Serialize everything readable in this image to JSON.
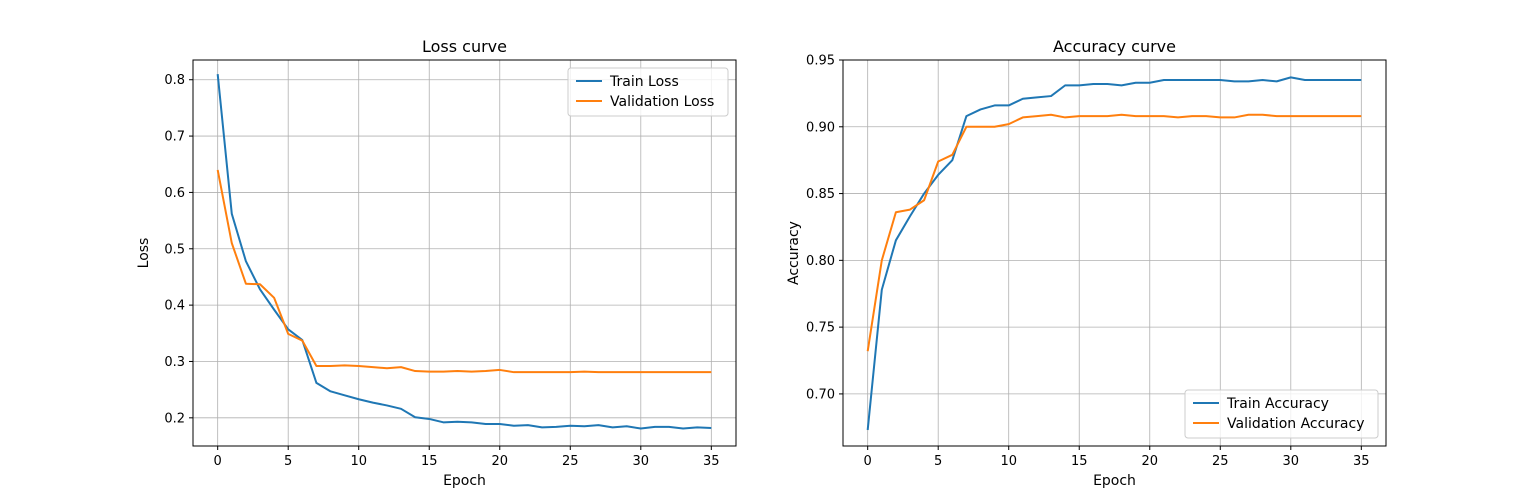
{
  "chart_data": [
    {
      "type": "line",
      "title": "Loss curve",
      "xlabel": "Epoch",
      "ylabel": "Loss",
      "xlim": [
        -1.75,
        36.75
      ],
      "ylim": [
        0.15,
        0.835
      ],
      "xticks": [
        0,
        5,
        10,
        15,
        20,
        25,
        30,
        35
      ],
      "xtick_labels": [
        "0",
        "5",
        "10",
        "15",
        "20",
        "25",
        "30",
        "35"
      ],
      "yticks": [
        0.2,
        0.3,
        0.4,
        0.5,
        0.6,
        0.7,
        0.8
      ],
      "ytick_labels": [
        "0.2",
        "0.3",
        "0.4",
        "0.5",
        "0.6",
        "0.7",
        "0.8"
      ],
      "grid": true,
      "legend_position": "upper right",
      "x": [
        0,
        1,
        2,
        3,
        4,
        5,
        6,
        7,
        8,
        9,
        10,
        11,
        12,
        13,
        14,
        15,
        16,
        17,
        18,
        19,
        20,
        21,
        22,
        23,
        24,
        25,
        26,
        27,
        28,
        29,
        30,
        31,
        32,
        33,
        34,
        35
      ],
      "series": [
        {
          "name": "Train Loss",
          "color": "#1f77b4",
          "values": [
            0.81,
            0.562,
            0.478,
            0.428,
            0.392,
            0.357,
            0.338,
            0.262,
            0.247,
            0.24,
            0.233,
            0.227,
            0.222,
            0.216,
            0.201,
            0.198,
            0.192,
            0.193,
            0.192,
            0.189,
            0.189,
            0.186,
            0.187,
            0.183,
            0.184,
            0.186,
            0.185,
            0.187,
            0.183,
            0.185,
            0.181,
            0.184,
            0.184,
            0.181,
            0.183,
            0.182
          ]
        },
        {
          "name": "Validation Loss",
          "color": "#ff7f0e",
          "values": [
            0.64,
            0.51,
            0.438,
            0.437,
            0.413,
            0.349,
            0.337,
            0.292,
            0.292,
            0.293,
            0.292,
            0.29,
            0.288,
            0.29,
            0.283,
            0.282,
            0.282,
            0.283,
            0.282,
            0.283,
            0.285,
            0.281,
            0.281,
            0.281,
            0.281,
            0.281,
            0.282,
            0.281,
            0.281,
            0.281,
            0.281,
            0.281,
            0.281,
            0.281,
            0.281,
            0.281
          ]
        }
      ]
    },
    {
      "type": "line",
      "title": "Accuracy curve",
      "xlabel": "Epoch",
      "ylabel": "Accuracy",
      "xlim": [
        -1.75,
        36.75
      ],
      "ylim": [
        0.661,
        0.95
      ],
      "xticks": [
        0,
        5,
        10,
        15,
        20,
        25,
        30,
        35
      ],
      "xtick_labels": [
        "0",
        "5",
        "10",
        "15",
        "20",
        "25",
        "30",
        "35"
      ],
      "yticks": [
        0.7,
        0.75,
        0.8,
        0.85,
        0.9,
        0.95
      ],
      "ytick_labels": [
        "0.70",
        "0.75",
        "0.80",
        "0.85",
        "0.90",
        "0.95"
      ],
      "grid": true,
      "legend_position": "lower right",
      "x": [
        0,
        1,
        2,
        3,
        4,
        5,
        6,
        7,
        8,
        9,
        10,
        11,
        12,
        13,
        14,
        15,
        16,
        17,
        18,
        19,
        20,
        21,
        22,
        23,
        24,
        25,
        26,
        27,
        28,
        29,
        30,
        31,
        32,
        33,
        34,
        35
      ],
      "series": [
        {
          "name": "Train Accuracy",
          "color": "#1f77b4",
          "values": [
            0.673,
            0.778,
            0.815,
            0.833,
            0.85,
            0.864,
            0.875,
            0.908,
            0.913,
            0.916,
            0.916,
            0.921,
            0.922,
            0.923,
            0.931,
            0.931,
            0.932,
            0.932,
            0.931,
            0.933,
            0.933,
            0.935,
            0.935,
            0.935,
            0.935,
            0.935,
            0.934,
            0.934,
            0.935,
            0.934,
            0.937,
            0.935,
            0.935,
            0.935,
            0.935,
            0.935
          ]
        },
        {
          "name": "Validation Accuracy",
          "color": "#ff7f0e",
          "values": [
            0.732,
            0.8,
            0.836,
            0.838,
            0.845,
            0.874,
            0.879,
            0.9,
            0.9,
            0.9,
            0.902,
            0.907,
            0.908,
            0.909,
            0.907,
            0.908,
            0.908,
            0.908,
            0.909,
            0.908,
            0.908,
            0.908,
            0.907,
            0.908,
            0.908,
            0.907,
            0.907,
            0.909,
            0.909,
            0.908,
            0.908,
            0.908,
            0.908,
            0.908,
            0.908,
            0.908
          ]
        }
      ]
    }
  ]
}
